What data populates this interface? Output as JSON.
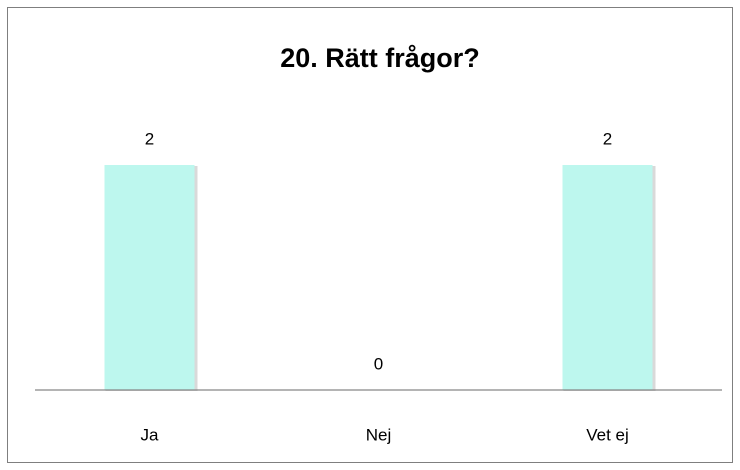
{
  "chart_data": {
    "type": "bar",
    "title": "20. Rätt frågor?",
    "categories": [
      "Ja",
      "Nej",
      "Vet ej"
    ],
    "values": [
      2,
      0,
      2
    ],
    "color": "#bdf7ee"
  }
}
